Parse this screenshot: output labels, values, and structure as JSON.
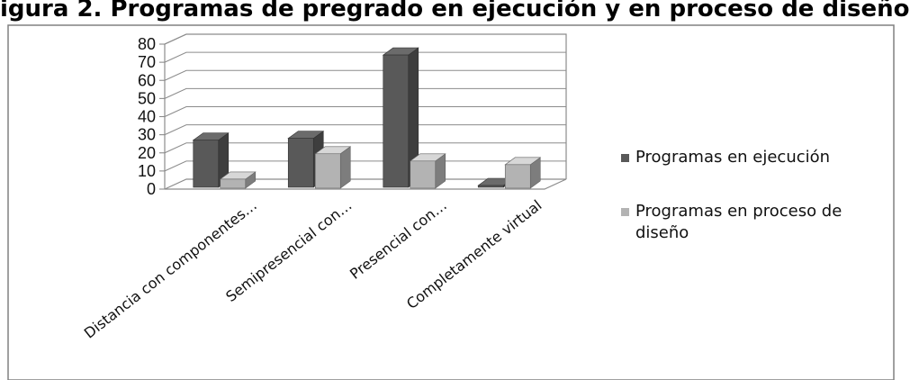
{
  "figure": {
    "title": "igura 2. Programas de pregrado en ejecución y en proceso de diseño"
  },
  "chart_data": {
    "type": "bar",
    "categories": [
      "Distancia con componentes…",
      "Semipresencial con…",
      "Presencial con…",
      "Completamente virtual"
    ],
    "series": [
      {
        "name": "Programas en ejecución",
        "values": [
          26,
          27,
          73,
          1
        ],
        "color": "#595959"
      },
      {
        "name": "Programas en proceso de diseño",
        "values": [
          5,
          19,
          15,
          13
        ],
        "color": "#b3b3b3"
      }
    ],
    "yticks": [
      0,
      10,
      20,
      30,
      40,
      50,
      60,
      70,
      80
    ],
    "ylim": [
      0,
      80
    ],
    "grid": true,
    "legend": "right",
    "three_d": true
  }
}
